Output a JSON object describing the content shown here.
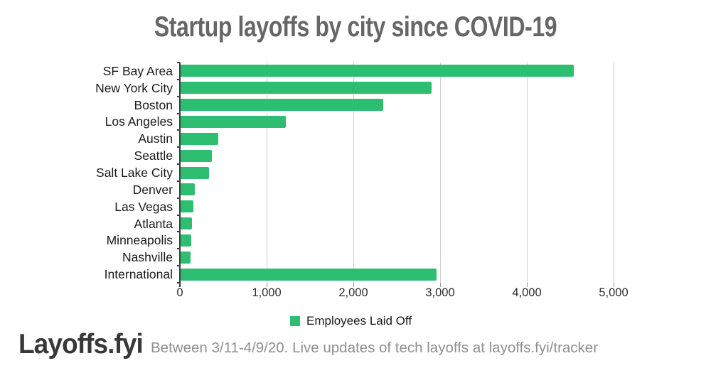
{
  "title": "Startup layoffs by city since COVID-19",
  "colors": {
    "bar_green": "#2ebe72",
    "title_gray": "#666666",
    "grid_gray": "#cfcfcf",
    "axis_dark": "#3c3c3c",
    "logo_gray": "#383838",
    "note_gray": "#8f8f8f"
  },
  "chart_data": {
    "type": "bar",
    "orientation": "horizontal",
    "title": "Startup layoffs by city since COVID-19",
    "series_name": "Employees Laid Off",
    "categories": [
      "SF Bay Area",
      "New York City",
      "Boston",
      "Los Angeles",
      "Austin",
      "Seattle",
      "Salt Lake City",
      "Denver",
      "Las Vegas",
      "Atlanta",
      "Minneapolis",
      "Nashville",
      "International"
    ],
    "values": [
      4530,
      2890,
      2340,
      1210,
      435,
      360,
      325,
      160,
      150,
      135,
      120,
      115,
      2950
    ],
    "xlabel": "",
    "ylabel": "",
    "xlim": [
      0,
      6000
    ],
    "x_ticks": [
      0,
      1000,
      2000,
      3000,
      4000,
      5000
    ],
    "x_tick_labels": [
      "0",
      "1,000",
      "2,000",
      "3,000",
      "4,000",
      "5,000"
    ],
    "grid": true,
    "legend_position": "bottom"
  },
  "legend": {
    "label": "Employees Laid Off"
  },
  "footer": {
    "logo": "Layoffs.fyi",
    "note": "Between 3/11-4/9/20. Live updates of tech layoffs at layoffs.fyi/tracker"
  }
}
